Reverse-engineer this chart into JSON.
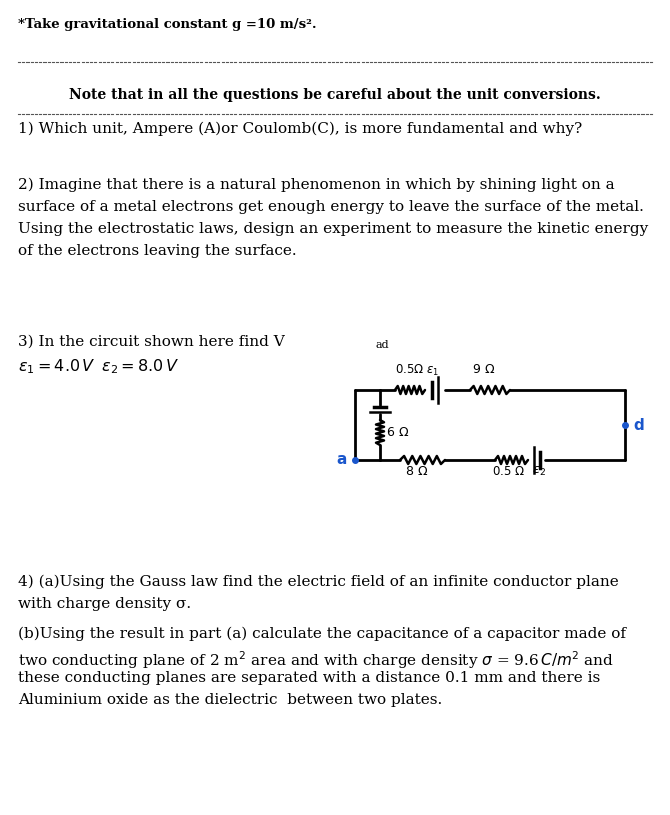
{
  "bg_color": "#ffffff",
  "text_color": "#000000",
  "fig_width": 6.7,
  "fig_height": 8.15,
  "dpi": 100,
  "header": "*Take gravitational constant g =10 m/s².",
  "note": "Note that in all the questions be careful about the unit conversions.",
  "q1": "1) Which unit, Ampere (A)or Coulomb(C), is more fundamental and why?",
  "q2_line1": "2) Imagine that there is a natural phenomenon in which by shining light on a",
  "q2_line2": "surface of a metal electrons get enough energy to leave the surface of the metal.",
  "q2_line3": "Using the electrostatic laws, design an experiment to measure the kinetic energy",
  "q2_line4": "of the electrons leaving the surface.",
  "q3_main": "3) In the circuit shown here find V",
  "q3_sub": "ad",
  "q3_eps": "$\\varepsilon_1 = 4.0\\,V\\;\\;\\varepsilon_2 = 8.0\\,V$",
  "q4a1": "4) (a)Using the Gauss law find the electric field of an infinite conductor plane",
  "q4a2": "with charge density σ.",
  "q4b1": "(b)Using the result in part (a) calculate the capacitance of a capacitor made of",
  "q4b2": "two conducting plane of 2 m² area and with charge density σ = 9.6 C/m² and",
  "q4b3": "these conducting planes are separated with a distance 0.1 mm and there is",
  "q4b4": "Aluminium oxide as the dielectric  between two plates.",
  "blue_color": "#1a56cc",
  "line_color": "#444444",
  "circuit_color": "#000000"
}
